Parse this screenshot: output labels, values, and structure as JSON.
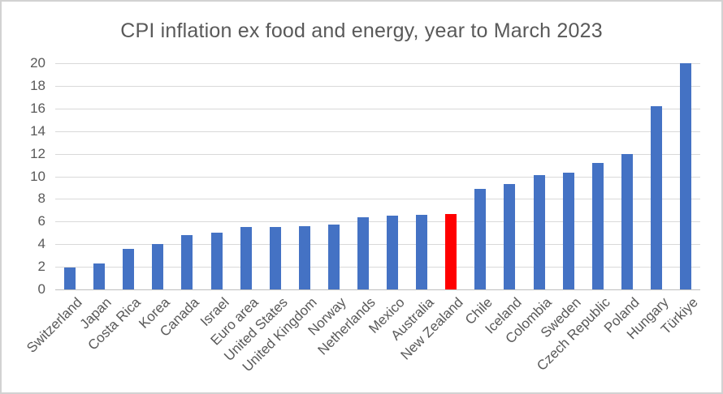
{
  "window": {
    "background": "#ffffff",
    "border_color": "#d2d2d2"
  },
  "chart_data": {
    "type": "bar",
    "title": "CPI inflation ex food and energy, year to March 2023",
    "categories": [
      "Switzerland",
      "Japan",
      "Costa Rica",
      "Korea",
      "Canada",
      "Israel",
      "Euro area",
      "United States",
      "United Kingdom",
      "Norway",
      "Netherlands",
      "Mexico",
      "Australia",
      "New Zealand",
      "Chile",
      "Iceland",
      "Colombia",
      "Sweden",
      "Czech Republic",
      "Poland",
      "Hungary",
      "Türkiye"
    ],
    "values": [
      1.9,
      2.3,
      3.6,
      4.0,
      4.8,
      5.0,
      5.5,
      5.5,
      5.6,
      5.7,
      6.4,
      6.5,
      6.6,
      6.7,
      8.9,
      9.3,
      10.1,
      10.3,
      11.2,
      12.0,
      16.2,
      20.0
    ],
    "highlight_category": "New Zealand",
    "highlight_index": 13,
    "bar_color": "#4472c4",
    "highlight_color": "#ff0000",
    "ylim": [
      0,
      20
    ],
    "yticks": [
      0,
      2,
      4,
      6,
      8,
      10,
      12,
      14,
      16,
      18,
      20
    ],
    "grid": true,
    "gridline_color": "#d9d9d9",
    "axis_line_color": "#bfbfbf",
    "text_color": "#595959",
    "xlabel": "",
    "ylabel": "",
    "legend": "none"
  }
}
